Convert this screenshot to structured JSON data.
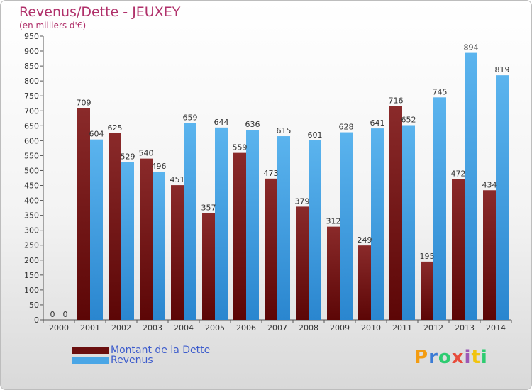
{
  "chart_data": {
    "type": "bar",
    "title": "Revenus/Dette - JEUXEY",
    "subtitle": "(en milliers d'€)",
    "categories": [
      "2000",
      "2001",
      "2002",
      "2003",
      "2004",
      "2005",
      "2006",
      "2007",
      "2008",
      "2009",
      "2010",
      "2011",
      "2012",
      "2013",
      "2014"
    ],
    "series": [
      {
        "name": "Montant de la Dette",
        "color": "#7a1e1e",
        "values": [
          0,
          709,
          625,
          540,
          451,
          357,
          559,
          473,
          379,
          312,
          249,
          716,
          195,
          472,
          434
        ]
      },
      {
        "name": "Revenus",
        "color": "#4aa6e6",
        "values": [
          0,
          604,
          529,
          496,
          659,
          644,
          636,
          615,
          601,
          628,
          641,
          652,
          745,
          894,
          819
        ]
      }
    ],
    "ylim": [
      0,
      950
    ],
    "yticks": [
      0,
      50,
      100,
      150,
      200,
      250,
      300,
      350,
      400,
      450,
      500,
      550,
      600,
      650,
      700,
      750,
      800,
      850,
      900,
      950
    ],
    "grid": false,
    "legend_position": "bottom-left"
  },
  "logo": {
    "text": "Proxiti",
    "letters": [
      "P",
      "r",
      "o",
      "x",
      "i",
      "t",
      "i"
    ],
    "colors": [
      "#f39c12",
      "#3a7bd5",
      "#2ecc71",
      "#e74c3c",
      "#9b59b6",
      "#f1c40f",
      "#2ecc71"
    ]
  }
}
